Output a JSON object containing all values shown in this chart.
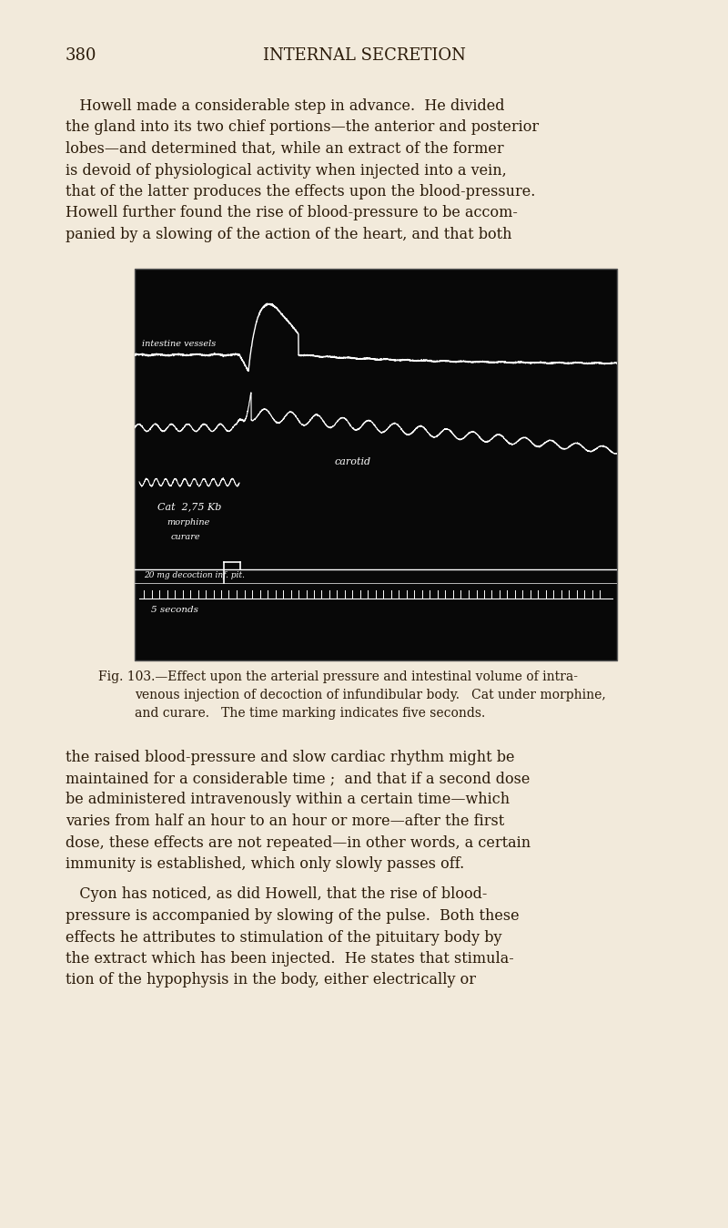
{
  "page_bg": "#f2eadb",
  "page_number": "380",
  "header_title": "INTERNAL SECRETION",
  "text_color": "#2a1a08",
  "image_bg": "#080808",
  "para1_lines": [
    "   Howell made a considerable step in advance.  He divided",
    "the gland into its two chief portions—the anterior and posterior",
    "lobes—and determined that, while an extract of the former",
    "is devoid of physiological activity when injected into a vein,",
    "that of the latter produces the effects upon the blood-pressure.",
    "Howell further found the rise of blood-pressure to be accom­",
    "panied by a slowing of the action of the heart, and that both"
  ],
  "cap_line1": "Fig. 103.—Effect upon the arterial pressure and intestinal volume of intra-",
  "cap_line2": "venous injection of decoction of infundibular body.   Cat under morphine,",
  "cap_line3": "and curare.   The time marking indicates five seconds.",
  "para2_lines": [
    "the raised blood-pressure and slow cardiac rhythm might be",
    "maintained for a considerable time ;  and that if a second dose",
    "be administered intravenously within a certain time—which",
    "varies from half an hour to an hour or more—after the first",
    "dose, these effects are not repeated—in other words, a certain",
    "immunity is established, which only slowly passes off."
  ],
  "para3_lines": [
    "   Cyon has noticed, as did Howell, that the rise of blood-",
    "pressure is accompanied by slowing of the pulse.  Both these",
    "effects he attributes to stimulation of the pituitary body by",
    "the extract which has been injected.  He states that stimula­",
    "tion of the hypophysis in the body, either electrically or"
  ]
}
